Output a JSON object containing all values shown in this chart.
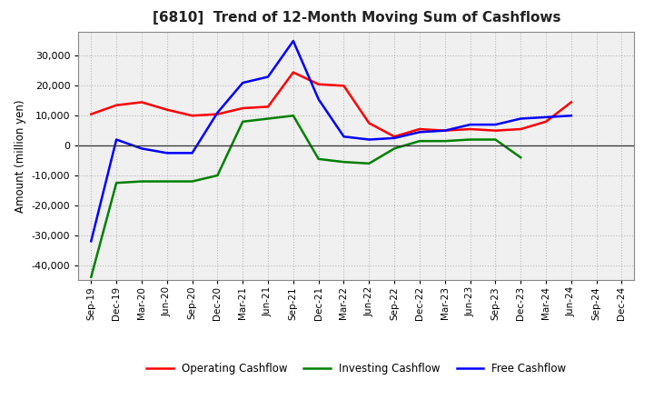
{
  "title": "[6810]  Trend of 12-Month Moving Sum of Cashflows",
  "ylabel": "Amount (million yen)",
  "x_labels": [
    "Sep-19",
    "Dec-19",
    "Mar-20",
    "Jun-20",
    "Sep-20",
    "Dec-20",
    "Mar-21",
    "Jun-21",
    "Sep-21",
    "Dec-21",
    "Mar-22",
    "Jun-22",
    "Sep-22",
    "Dec-22",
    "Mar-23",
    "Jun-23",
    "Sep-23",
    "Dec-23",
    "Mar-24",
    "Jun-24",
    "Sep-24",
    "Dec-24"
  ],
  "operating_cashflow": [
    10500,
    13500,
    14500,
    12000,
    10000,
    10500,
    12500,
    13000,
    24500,
    20500,
    20000,
    7500,
    3000,
    5500,
    5000,
    5500,
    5000,
    5500,
    8000,
    14500,
    null,
    null
  ],
  "investing_cashflow": [
    -44000,
    -12500,
    -12000,
    -12000,
    -12000,
    -10000,
    8000,
    9000,
    10000,
    -4500,
    -5500,
    -6000,
    -1000,
    1500,
    1500,
    2000,
    2000,
    -4000,
    null,
    null,
    null,
    null
  ],
  "free_cashflow": [
    -32000,
    2000,
    -1000,
    -2500,
    -2500,
    11000,
    21000,
    23000,
    35000,
    15500,
    3000,
    2000,
    2500,
    4500,
    5000,
    7000,
    7000,
    9000,
    9500,
    10000,
    null,
    null
  ],
  "ylim": [
    -45000,
    38000
  ],
  "yticks": [
    -40000,
    -30000,
    -20000,
    -10000,
    0,
    10000,
    20000,
    30000
  ],
  "operating_color": "#ff0000",
  "investing_color": "#008000",
  "free_color": "#0000ff",
  "background_color": "#ffffff",
  "plot_bg_color": "#f0f0f0",
  "grid_color": "#bbbbbb",
  "title_fontsize": 11,
  "title_fontweight": "bold",
  "legend_labels": [
    "Operating Cashflow",
    "Investing Cashflow",
    "Free Cashflow"
  ]
}
